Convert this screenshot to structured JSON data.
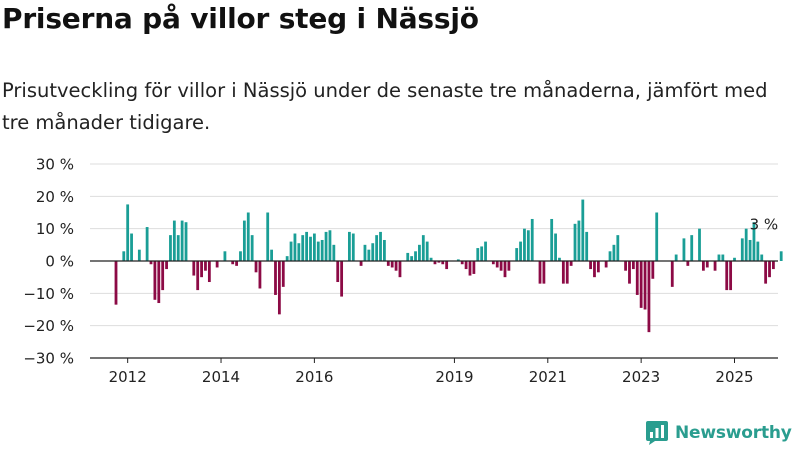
{
  "title": "Priserna på villor steg i Nässjö",
  "subtitle": "Prisutveckling för villor i Nässjö under de senaste tre månaderna, jämfört med tre månader tidigare.",
  "brand": "Newsworthy",
  "colors": {
    "positive": "#1a9e96",
    "negative": "#8c0a45",
    "grid": "#dddddd",
    "axis": "#222222",
    "brand": "#2a9d8f"
  },
  "chart_data": {
    "type": "bar",
    "x_start": "2011-10",
    "frequency": "monthly",
    "ylim": [
      -30,
      30
    ],
    "y_ticks": [
      30,
      20,
      10,
      0,
      -10,
      -20,
      -30
    ],
    "y_tick_labels": [
      "30 %",
      "20 %",
      "10 %",
      "0 %",
      "−10 %",
      "−20 %",
      "−30 %"
    ],
    "x_ticks": [
      {
        "date": "2012-01",
        "label": "2012"
      },
      {
        "date": "2014-01",
        "label": "2014"
      },
      {
        "date": "2016-01",
        "label": "2016"
      },
      {
        "date": "2019-01",
        "label": "2019"
      },
      {
        "date": "2021-01",
        "label": "2021"
      },
      {
        "date": "2023-01",
        "label": "2023"
      },
      {
        "date": "2025-01",
        "label": "2025"
      }
    ],
    "values": [
      -13.5,
      0,
      3,
      17.5,
      8.5,
      0,
      3.5,
      0,
      10.5,
      -1,
      -12,
      -13,
      -9,
      -2.5,
      8,
      12.5,
      8,
      12.5,
      12,
      0,
      -4.5,
      -9,
      -5,
      -3,
      -6.5,
      0,
      -2,
      0,
      3,
      0,
      -1,
      -1.5,
      3,
      12.5,
      15,
      8,
      -3.5,
      -8.5,
      0,
      15,
      3.5,
      -10.5,
      -16.5,
      -8,
      1.5,
      6,
      8.5,
      5.5,
      8,
      9,
      7.5,
      8.5,
      6,
      6.5,
      9,
      9.5,
      5,
      -6.5,
      -11,
      0,
      9,
      8.5,
      0,
      -1.5,
      5,
      3.5,
      5.5,
      8,
      9,
      6.5,
      -1.5,
      -2,
      -3,
      -5,
      0,
      2.5,
      1.5,
      3,
      5,
      8,
      6,
      1,
      -1,
      -0.5,
      -1,
      -2.5,
      0,
      0,
      0.5,
      -1,
      -2.5,
      -4.5,
      -4,
      4,
      4.5,
      6,
      0,
      -1,
      -2,
      -3,
      -5,
      -3,
      0,
      4,
      6,
      10,
      9.5,
      13,
      0,
      -7,
      -7,
      0,
      13,
      8.5,
      1,
      -7,
      -7,
      -1.5,
      11.5,
      12.5,
      19,
      9,
      -2.5,
      -5,
      -3.5,
      0,
      -2,
      3,
      5,
      8,
      0,
      -3,
      -7,
      -2.5,
      -10.5,
      -14.5,
      -15,
      -22,
      -5.5,
      15,
      0,
      0,
      0,
      -8,
      2,
      0,
      7,
      -1.5,
      8,
      0,
      10,
      -3,
      -2,
      0,
      -3,
      2,
      2,
      -9,
      -9,
      1,
      0,
      7,
      10,
      6.5,
      12,
      6,
      2,
      -7,
      -5,
      -2.5,
      0,
      3
    ],
    "annotations": [
      {
        "date": "2025-09",
        "text": "3 %"
      }
    ]
  }
}
